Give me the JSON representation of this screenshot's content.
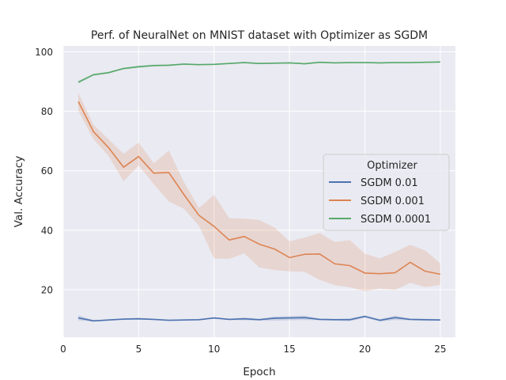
{
  "chart_data": {
    "type": "line",
    "title": "Perf. of NeuralNet on MNIST dataset with Optimizer as SGDM",
    "xlabel": "Epoch",
    "ylabel": "Val. Accuracy",
    "xlim": [
      0,
      26
    ],
    "ylim": [
      4,
      102
    ],
    "xticks": [
      0,
      5,
      10,
      15,
      20,
      25
    ],
    "yticks": [
      20,
      40,
      60,
      80,
      100
    ],
    "grid": true,
    "legend": {
      "title": "Optimizer",
      "placement": "center-right"
    },
    "x": [
      1,
      2,
      3,
      4,
      5,
      6,
      7,
      8,
      9,
      10,
      11,
      12,
      13,
      14,
      15,
      16,
      17,
      18,
      19,
      20,
      21,
      22,
      23,
      24,
      25
    ],
    "series": [
      {
        "name": "SGDM 0.01",
        "color": "#4c72b0",
        "values": [
          10.5,
          9.5,
          9.8,
          10.1,
          10.2,
          10.0,
          9.7,
          9.8,
          9.9,
          10.5,
          10.0,
          10.2,
          9.9,
          10.4,
          10.5,
          10.6,
          10.0,
          9.9,
          9.9,
          11.0,
          9.7,
          10.6,
          10.0,
          9.9,
          9.8
        ],
        "ci_lower": [
          9.7,
          9.3,
          9.6,
          9.9,
          9.9,
          9.8,
          9.6,
          9.7,
          9.7,
          10.2,
          9.8,
          9.7,
          9.6,
          9.6,
          9.7,
          9.8,
          9.7,
          9.6,
          9.4,
          10.6,
          9.3,
          9.8,
          9.7,
          9.5,
          9.6
        ],
        "ci_upper": [
          11.4,
          9.8,
          10.0,
          10.3,
          10.6,
          10.2,
          9.9,
          10.0,
          10.1,
          10.7,
          10.2,
          10.7,
          10.2,
          11.0,
          11.1,
          11.3,
          10.3,
          10.2,
          10.4,
          11.4,
          10.1,
          11.3,
          10.3,
          10.2,
          10.1
        ]
      },
      {
        "name": "SGDM 0.001",
        "color": "#dd8452",
        "values": [
          83.3,
          73.2,
          67.8,
          61.2,
          64.8,
          59.2,
          59.4,
          52.0,
          45.0,
          41.3,
          36.7,
          37.9,
          35.3,
          33.7,
          30.8,
          31.9,
          32.0,
          28.7,
          28.1,
          25.6,
          25.4,
          25.7,
          29.2,
          26.2,
          25.2
        ],
        "ci_lower": [
          80.2,
          70.6,
          65.0,
          56.5,
          61.8,
          55.5,
          49.7,
          47.2,
          41.5,
          30.5,
          30.4,
          32.2,
          27.5,
          26.6,
          26.2,
          26.0,
          23.3,
          21.5,
          20.8,
          19.5,
          20.4,
          19.9,
          22.3,
          20.9,
          21.6
        ],
        "ci_upper": [
          86.2,
          75.5,
          70.6,
          65.7,
          69.5,
          62.5,
          66.8,
          56.2,
          47.5,
          51.9,
          44.0,
          43.9,
          43.4,
          40.9,
          36.3,
          37.5,
          39.1,
          36.0,
          36.7,
          32.1,
          30.5,
          32.7,
          35.1,
          33.2,
          28.9
        ]
      },
      {
        "name": "SGDM 0.0001",
        "color": "#55a868",
        "values": [
          89.8,
          92.3,
          93.0,
          94.4,
          95.0,
          95.4,
          95.5,
          95.9,
          95.7,
          95.8,
          96.1,
          96.4,
          96.1,
          96.2,
          96.3,
          96.0,
          96.5,
          96.3,
          96.4,
          96.4,
          96.3,
          96.4,
          96.4,
          96.5,
          96.6
        ],
        "ci_lower": [
          89.3,
          92.0,
          92.7,
          94.1,
          94.6,
          95.1,
          95.2,
          95.7,
          95.5,
          95.6,
          95.9,
          96.2,
          95.9,
          96.0,
          96.1,
          95.8,
          96.3,
          96.1,
          96.2,
          96.2,
          96.1,
          96.2,
          96.2,
          96.3,
          96.4
        ],
        "ci_upper": [
          90.3,
          92.6,
          93.3,
          94.7,
          95.4,
          95.7,
          95.8,
          96.1,
          95.9,
          96.0,
          96.3,
          96.6,
          96.3,
          96.4,
          96.5,
          96.2,
          96.7,
          96.5,
          96.6,
          96.6,
          96.5,
          96.6,
          96.6,
          96.7,
          96.8
        ]
      }
    ]
  }
}
